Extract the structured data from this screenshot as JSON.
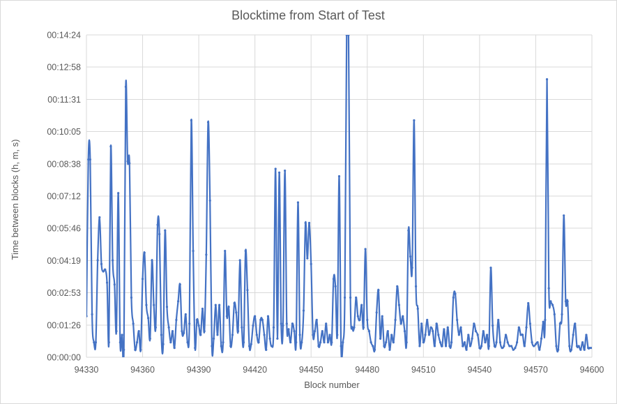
{
  "chart_data": {
    "type": "line",
    "title": "Blocktime from Start of Test",
    "xlabel": "Block number",
    "ylabel": "Time between blocks (h, m, s)",
    "xlim": [
      94330,
      94600
    ],
    "ylim_seconds": [
      0,
      864
    ],
    "grid": true,
    "x_ticks": [
      {
        "value": 94330,
        "label": "94330"
      },
      {
        "value": 94360,
        "label": "94360"
      },
      {
        "value": 94390,
        "label": "94390"
      },
      {
        "value": 94420,
        "label": "94420"
      },
      {
        "value": 94450,
        "label": "94450"
      },
      {
        "value": 94480,
        "label": "94480"
      },
      {
        "value": 94510,
        "label": "94510"
      },
      {
        "value": 94540,
        "label": "94540"
      },
      {
        "value": 94570,
        "label": "94570"
      },
      {
        "value": 94600,
        "label": "94600"
      }
    ],
    "y_ticks": [
      {
        "value": 0,
        "label": "00:00:00"
      },
      {
        "value": 86,
        "label": "00:01:26"
      },
      {
        "value": 173,
        "label": "00:02:53"
      },
      {
        "value": 259,
        "label": "00:04:19"
      },
      {
        "value": 346,
        "label": "00:05:46"
      },
      {
        "value": 432,
        "label": "00:07:12"
      },
      {
        "value": 518,
        "label": "00:08:38"
      },
      {
        "value": 605,
        "label": "00:10:05"
      },
      {
        "value": 691,
        "label": "00:11:31"
      },
      {
        "value": 778,
        "label": "00:12:58"
      },
      {
        "value": 864,
        "label": "00:14:24"
      }
    ],
    "series": [
      {
        "color": "#4472c4",
        "points": [
          [
            94330,
            110
          ],
          [
            94331,
            530
          ],
          [
            94332,
            530
          ],
          [
            94333,
            115
          ],
          [
            94334,
            40
          ],
          [
            94335,
            40
          ],
          [
            94336,
            260
          ],
          [
            94337,
            375
          ],
          [
            94338,
            250
          ],
          [
            94339,
            230
          ],
          [
            94340,
            235
          ],
          [
            94341,
            200
          ],
          [
            94342,
            40
          ],
          [
            94343,
            565
          ],
          [
            94344,
            260
          ],
          [
            94345,
            195
          ],
          [
            94346,
            70
          ],
          [
            94347,
            440
          ],
          [
            94348,
            40
          ],
          [
            94349,
            60
          ],
          [
            94350,
            20
          ],
          [
            94351,
            725
          ],
          [
            94352,
            525
          ],
          [
            94353,
            520
          ],
          [
            94354,
            160
          ],
          [
            94355,
            90
          ],
          [
            94356,
            20
          ],
          [
            94357,
            40
          ],
          [
            94358,
            70
          ],
          [
            94359,
            20
          ],
          [
            94360,
            210
          ],
          [
            94361,
            280
          ],
          [
            94362,
            140
          ],
          [
            94363,
            105
          ],
          [
            94364,
            50
          ],
          [
            94365,
            260
          ],
          [
            94366,
            140
          ],
          [
            94367,
            80
          ],
          [
            94368,
            355
          ],
          [
            94369,
            330
          ],
          [
            94370,
            60
          ],
          [
            94371,
            35
          ],
          [
            94372,
            340
          ],
          [
            94373,
            135
          ],
          [
            94374,
            80
          ],
          [
            94375,
            40
          ],
          [
            94376,
            70
          ],
          [
            94377,
            25
          ],
          [
            94378,
            100
          ],
          [
            94379,
            150
          ],
          [
            94380,
            195
          ],
          [
            94381,
            70
          ],
          [
            94382,
            65
          ],
          [
            94383,
            115
          ],
          [
            94384,
            40
          ],
          [
            94385,
            90
          ],
          [
            94386,
            635
          ],
          [
            94387,
            285
          ],
          [
            94388,
            25
          ],
          [
            94389,
            100
          ],
          [
            94390,
            85
          ],
          [
            94391,
            60
          ],
          [
            94392,
            130
          ],
          [
            94393,
            70
          ],
          [
            94394,
            275
          ],
          [
            94395,
            630
          ],
          [
            94396,
            420
          ],
          [
            94397,
            30
          ],
          [
            94398,
            50
          ],
          [
            94399,
            140
          ],
          [
            94400,
            60
          ],
          [
            94401,
            140
          ],
          [
            94402,
            30
          ],
          [
            94403,
            40
          ],
          [
            94404,
            285
          ],
          [
            94405,
            110
          ],
          [
            94406,
            135
          ],
          [
            94407,
            30
          ],
          [
            94408,
            60
          ],
          [
            94409,
            145
          ],
          [
            94410,
            120
          ],
          [
            94411,
            70
          ],
          [
            94412,
            260
          ],
          [
            94413,
            80
          ],
          [
            94414,
            40
          ],
          [
            94415,
            285
          ],
          [
            94416,
            180
          ],
          [
            94417,
            30
          ],
          [
            94418,
            35
          ],
          [
            94419,
            85
          ],
          [
            94420,
            110
          ],
          [
            94421,
            60
          ],
          [
            94422,
            40
          ],
          [
            94423,
            100
          ],
          [
            94424,
            100
          ],
          [
            94425,
            60
          ],
          [
            94426,
            20
          ],
          [
            94427,
            110
          ],
          [
            94428,
            50
          ],
          [
            94429,
            30
          ],
          [
            94430,
            80
          ],
          [
            94431,
            505
          ],
          [
            94432,
            50
          ],
          [
            94433,
            495
          ],
          [
            94434,
            90
          ],
          [
            94435,
            85
          ],
          [
            94436,
            500
          ],
          [
            94437,
            90
          ],
          [
            94438,
            75
          ],
          [
            94439,
            40
          ],
          [
            94440,
            90
          ],
          [
            94441,
            70
          ],
          [
            94442,
            40
          ],
          [
            94443,
            415
          ],
          [
            94444,
            60
          ],
          [
            94445,
            40
          ],
          [
            94446,
            125
          ],
          [
            94447,
            360
          ],
          [
            94448,
            265
          ],
          [
            94449,
            360
          ],
          [
            94450,
            250
          ],
          [
            94451,
            60
          ],
          [
            94452,
            70
          ],
          [
            94453,
            100
          ],
          [
            94454,
            30
          ],
          [
            94455,
            40
          ],
          [
            94456,
            70
          ],
          [
            94457,
            40
          ],
          [
            94458,
            90
          ],
          [
            94459,
            40
          ],
          [
            94460,
            60
          ],
          [
            94461,
            40
          ],
          [
            94462,
            210
          ],
          [
            94463,
            190
          ],
          [
            94464,
            60
          ],
          [
            94465,
            485
          ],
          [
            94466,
            30
          ],
          [
            94467,
            40
          ],
          [
            94468,
            160
          ],
          [
            94469,
            864
          ],
          [
            94470,
            864
          ],
          [
            94471,
            160
          ],
          [
            94472,
            80
          ],
          [
            94473,
            80
          ],
          [
            94474,
            160
          ],
          [
            94475,
            110
          ],
          [
            94476,
            100
          ],
          [
            94477,
            140
          ],
          [
            94478,
            80
          ],
          [
            94479,
            290
          ],
          [
            94480,
            100
          ],
          [
            94481,
            70
          ],
          [
            94482,
            40
          ],
          [
            94483,
            30
          ],
          [
            94484,
            20
          ],
          [
            94485,
            120
          ],
          [
            94486,
            180
          ],
          [
            94487,
            50
          ],
          [
            94488,
            110
          ],
          [
            94489,
            30
          ],
          [
            94490,
            40
          ],
          [
            94491,
            70
          ],
          [
            94492,
            20
          ],
          [
            94493,
            60
          ],
          [
            94494,
            40
          ],
          [
            94495,
            100
          ],
          [
            94496,
            190
          ],
          [
            94497,
            140
          ],
          [
            94498,
            90
          ],
          [
            94499,
            110
          ],
          [
            94500,
            70
          ],
          [
            94501,
            40
          ],
          [
            94502,
            340
          ],
          [
            94503,
            270
          ],
          [
            94504,
            240
          ],
          [
            94505,
            635
          ],
          [
            94506,
            190
          ],
          [
            94507,
            130
          ],
          [
            94508,
            30
          ],
          [
            94509,
            90
          ],
          [
            94510,
            40
          ],
          [
            94511,
            60
          ],
          [
            94512,
            100
          ],
          [
            94513,
            60
          ],
          [
            94514,
            80
          ],
          [
            94515,
            70
          ],
          [
            94516,
            30
          ],
          [
            94517,
            90
          ],
          [
            94518,
            60
          ],
          [
            94519,
            40
          ],
          [
            94520,
            30
          ],
          [
            94521,
            75
          ],
          [
            94522,
            30
          ],
          [
            94523,
            80
          ],
          [
            94524,
            30
          ],
          [
            94525,
            40
          ],
          [
            94526,
            160
          ],
          [
            94527,
            170
          ],
          [
            94528,
            100
          ],
          [
            94529,
            60
          ],
          [
            94530,
            80
          ],
          [
            94531,
            30
          ],
          [
            94532,
            40
          ],
          [
            94533,
            20
          ],
          [
            94534,
            60
          ],
          [
            94535,
            30
          ],
          [
            94536,
            50
          ],
          [
            94537,
            90
          ],
          [
            94538,
            70
          ],
          [
            94539,
            60
          ],
          [
            94540,
            25
          ],
          [
            94541,
            30
          ],
          [
            94542,
            70
          ],
          [
            94543,
            40
          ],
          [
            94544,
            60
          ],
          [
            94545,
            30
          ],
          [
            94546,
            240
          ],
          [
            94547,
            85
          ],
          [
            94548,
            30
          ],
          [
            94549,
            40
          ],
          [
            94550,
            100
          ],
          [
            94551,
            40
          ],
          [
            94552,
            25
          ],
          [
            94553,
            30
          ],
          [
            94554,
            60
          ],
          [
            94555,
            40
          ],
          [
            94556,
            30
          ],
          [
            94557,
            30
          ],
          [
            94558,
            20
          ],
          [
            94559,
            25
          ],
          [
            94560,
            40
          ],
          [
            94561,
            80
          ],
          [
            94562,
            60
          ],
          [
            94563,
            60
          ],
          [
            94564,
            30
          ],
          [
            94565,
            80
          ],
          [
            94566,
            145
          ],
          [
            94567,
            90
          ],
          [
            94568,
            40
          ],
          [
            94569,
            30
          ],
          [
            94570,
            35
          ],
          [
            94571,
            40
          ],
          [
            94572,
            20
          ],
          [
            94573,
            50
          ],
          [
            94574,
            95
          ],
          [
            94575,
            100
          ],
          [
            94576,
            745
          ],
          [
            94577,
            185
          ],
          [
            94578,
            150
          ],
          [
            94579,
            140
          ],
          [
            94580,
            115
          ],
          [
            94581,
            30
          ],
          [
            94582,
            20
          ],
          [
            94583,
            90
          ],
          [
            94584,
            115
          ],
          [
            94585,
            380
          ],
          [
            94586,
            150
          ],
          [
            94587,
            150
          ],
          [
            94588,
            30
          ],
          [
            94589,
            20
          ],
          [
            94590,
            60
          ],
          [
            94591,
            90
          ],
          [
            94592,
            30
          ],
          [
            94593,
            30
          ],
          [
            94594,
            20
          ],
          [
            94595,
            40
          ],
          [
            94596,
            20
          ],
          [
            94597,
            60
          ],
          [
            94598,
            25
          ],
          [
            94599,
            25
          ],
          [
            94600,
            25
          ]
        ]
      }
    ]
  }
}
